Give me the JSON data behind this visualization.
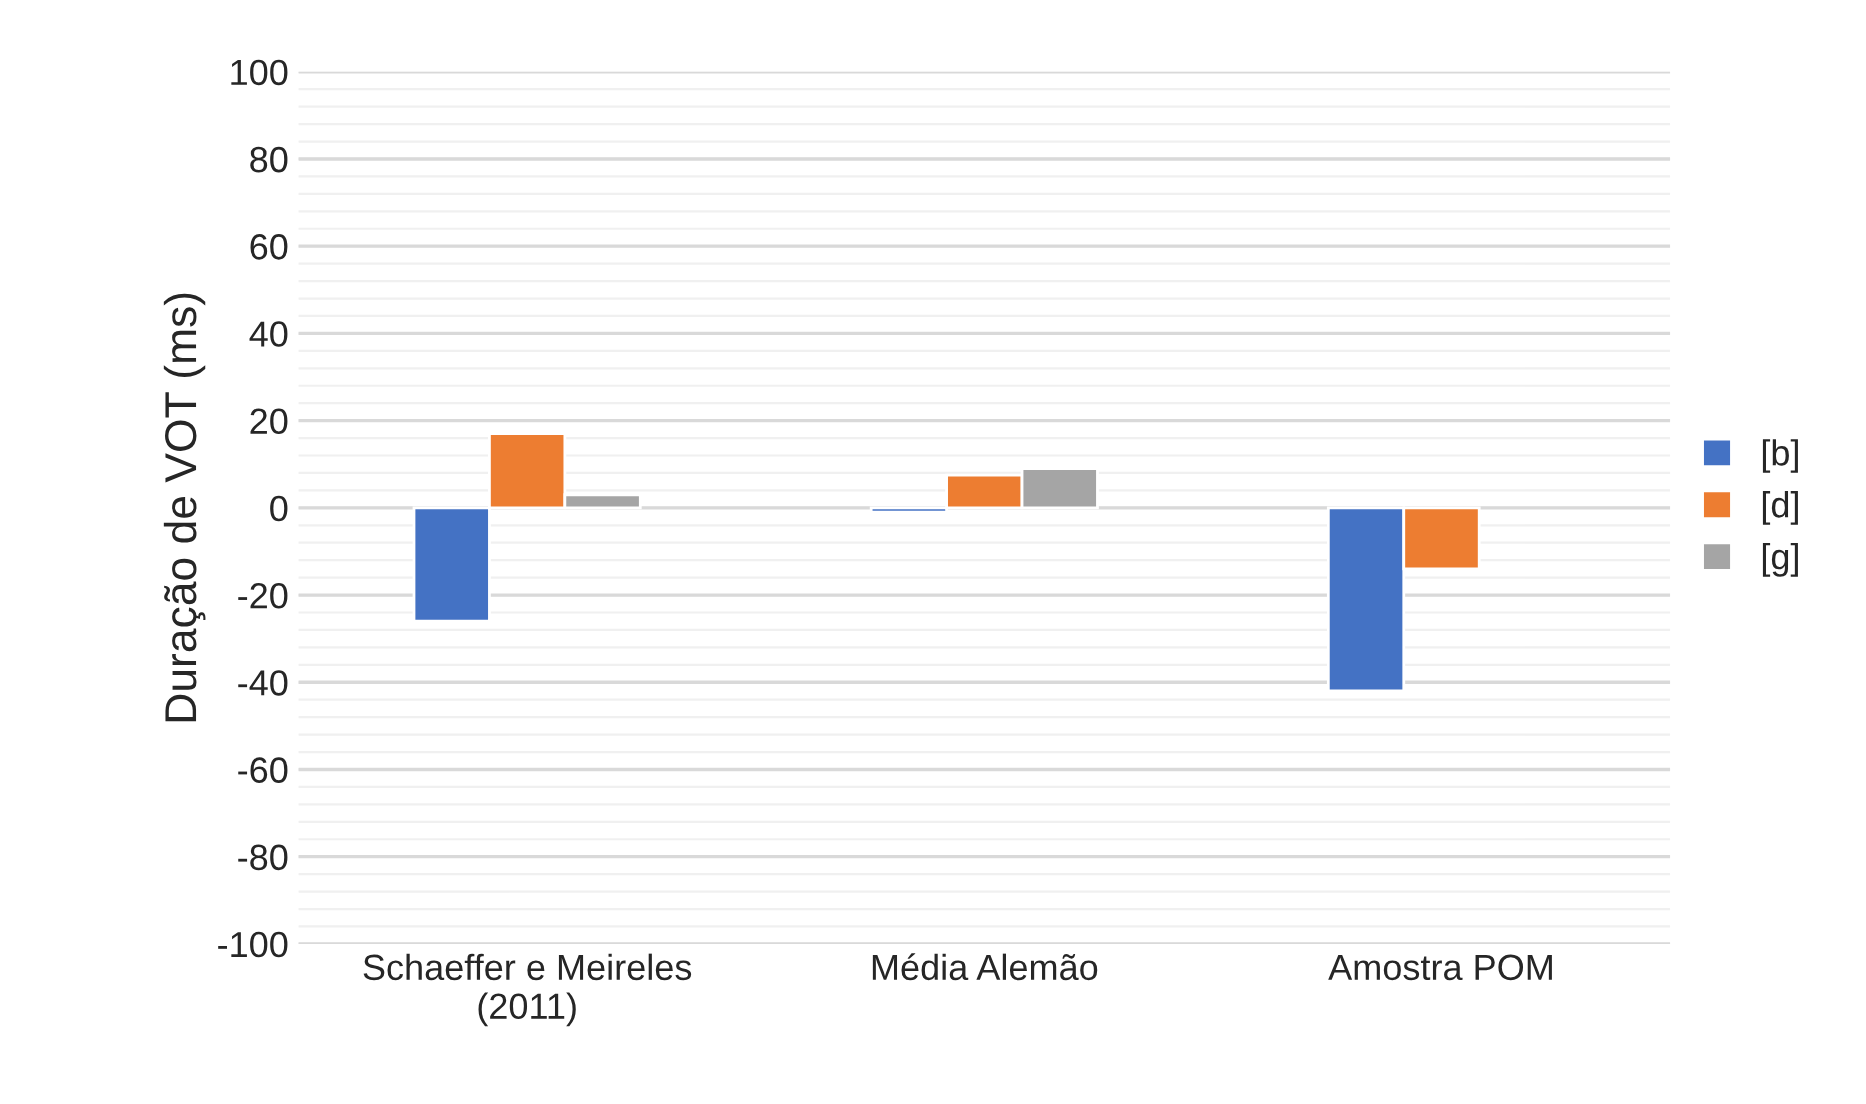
{
  "chart_data": {
    "type": "bar",
    "ylabel": "Duração de VOT (ms)",
    "categories": [
      "Schaeffer e Meireles\n(2011)",
      "Média Alemão",
      "Amostra POM"
    ],
    "series": [
      {
        "name": "[b]",
        "color": "#4472c4",
        "values": [
          -26,
          -1,
          -42
        ]
      },
      {
        "name": "[d]",
        "color": "#ed7d31",
        "values": [
          17,
          7.5,
          -14
        ]
      },
      {
        "name": "[g]",
        "color": "#a5a5a5",
        "values": [
          3,
          9,
          null
        ]
      }
    ],
    "ylim": [
      -100,
      100
    ],
    "yticks": [
      -100,
      -80,
      -60,
      -40,
      -20,
      0,
      20,
      40,
      60,
      80,
      100
    ],
    "grid": "y",
    "legend": "right"
  }
}
